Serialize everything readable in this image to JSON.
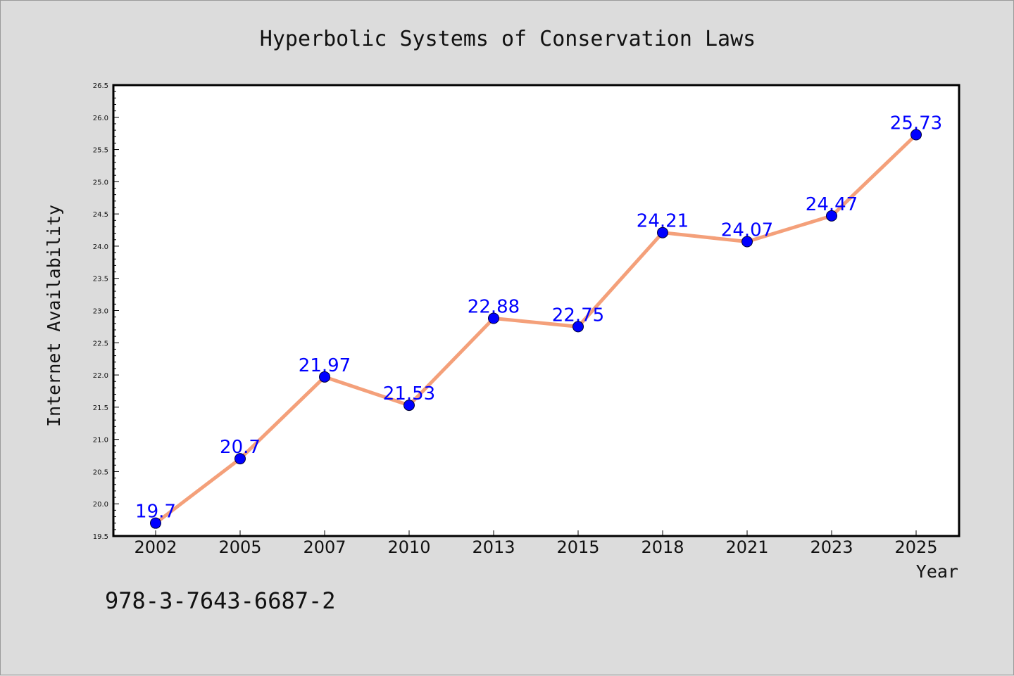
{
  "chart_data": {
    "type": "line",
    "title": "Hyperbolic Systems of Conservation Laws",
    "xlabel": "Year",
    "ylabel": "Internet Availability",
    "categories": [
      "2002",
      "2005",
      "2007",
      "2010",
      "2013",
      "2015",
      "2018",
      "2021",
      "2023",
      "2025"
    ],
    "series": [
      {
        "values": [
          19.7,
          20.7,
          21.97,
          21.53,
          22.88,
          22.75,
          24.21,
          24.07,
          24.47,
          25.73
        ]
      }
    ],
    "data_labels": [
      "19.7",
      "20.7",
      "21.97",
      "21.53",
      "22.88",
      "22.75",
      "24.21",
      "24.07",
      "24.47",
      "25.73"
    ],
    "ylim": [
      19.5,
      26.5
    ],
    "yticks": [
      "19.5",
      "20.0",
      "20.5",
      "21.0",
      "21.5",
      "22.0",
      "22.5",
      "23.0",
      "23.5",
      "24.0",
      "24.5",
      "25.0",
      "25.5",
      "26.0",
      "26.5"
    ],
    "grid": false,
    "line_color": "#f4a07a",
    "marker_color": "#0000ff",
    "label_color": "#0000ff",
    "background": "#dcdcdc",
    "plot_background": "#ffffff"
  },
  "annotation": "978-3-7643-6687-2"
}
